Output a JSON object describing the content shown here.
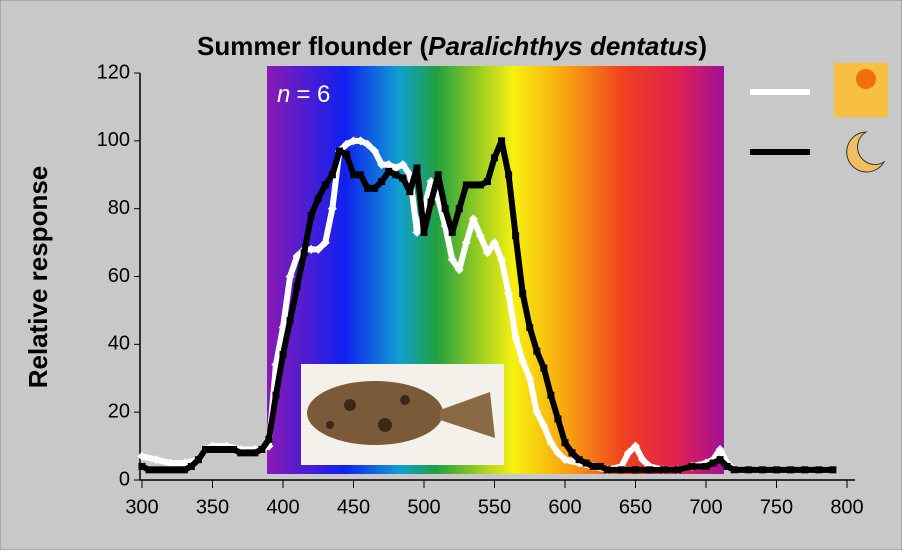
{
  "chart_data": {
    "type": "line",
    "title": [
      "Summer flounder (",
      "Paralichthys dentatus",
      ")"
    ],
    "ylabel": "Relative response",
    "annotation": [
      "n",
      "= 6"
    ],
    "xlim": [
      300,
      800
    ],
    "xticks": [
      300,
      350,
      400,
      450,
      500,
      550,
      600,
      650,
      700,
      750,
      800
    ],
    "ylim": [
      0,
      120
    ],
    "yticks": [
      0,
      20,
      40,
      60,
      80,
      100,
      120
    ],
    "series": [
      {
        "color": "#ffffff",
        "marker": "diamond",
        "x": [
          300,
          310,
          320,
          330,
          340,
          345,
          350,
          360,
          370,
          380,
          385,
          390,
          395,
          400,
          405,
          410,
          415,
          420,
          425,
          430,
          435,
          440,
          445,
          450,
          455,
          460,
          465,
          470,
          475,
          480,
          485,
          490,
          495,
          500,
          505,
          510,
          515,
          520,
          525,
          530,
          535,
          540,
          545,
          550,
          555,
          560,
          565,
          570,
          575,
          580,
          585,
          590,
          595,
          600,
          610,
          620,
          630,
          640,
          645,
          650,
          655,
          660,
          670,
          680,
          690,
          700,
          705,
          710,
          715,
          720
        ],
        "values": [
          7,
          6,
          5,
          5,
          6,
          9,
          10,
          10,
          9,
          9,
          9,
          10,
          34,
          45,
          60,
          66,
          68,
          68,
          68,
          70,
          80,
          97,
          99,
          100,
          100,
          99,
          97,
          93,
          93,
          92,
          93,
          90,
          73,
          80,
          88,
          83,
          75,
          65,
          62,
          70,
          77,
          72,
          67,
          70,
          65,
          55,
          42,
          35,
          30,
          20,
          16,
          11,
          8,
          6,
          5,
          4,
          3,
          4,
          8,
          10,
          6,
          4,
          3,
          3,
          4,
          5,
          6,
          9,
          5,
          3
        ]
      },
      {
        "color": "#000000",
        "marker": "square",
        "x": [
          300,
          305,
          310,
          315,
          320,
          325,
          330,
          335,
          340,
          345,
          350,
          355,
          360,
          365,
          370,
          375,
          380,
          385,
          390,
          395,
          400,
          405,
          410,
          415,
          420,
          425,
          430,
          435,
          440,
          445,
          450,
          455,
          460,
          465,
          470,
          475,
          480,
          485,
          490,
          495,
          500,
          505,
          510,
          515,
          520,
          525,
          530,
          535,
          540,
          545,
          550,
          555,
          560,
          565,
          570,
          575,
          580,
          585,
          590,
          595,
          600,
          605,
          610,
          615,
          620,
          625,
          630,
          640,
          650,
          660,
          670,
          680,
          690,
          700,
          705,
          710,
          715,
          720,
          730,
          740,
          750,
          760,
          770,
          780,
          790
        ],
        "values": [
          4,
          3,
          3,
          3,
          3,
          3,
          3,
          4,
          6,
          9,
          9,
          9,
          9,
          9,
          8,
          8,
          8,
          9,
          12,
          25,
          37,
          47,
          57,
          67,
          78,
          83,
          87,
          90,
          97,
          96,
          90,
          90,
          86,
          86,
          88,
          91,
          90,
          89,
          85,
          92,
          73,
          82,
          90,
          80,
          73,
          80,
          87,
          87,
          87,
          88,
          95,
          100,
          90,
          72,
          55,
          45,
          38,
          33,
          25,
          18,
          11,
          8,
          6,
          5,
          4,
          4,
          3,
          3,
          3,
          3,
          3,
          3,
          4,
          4,
          5,
          6,
          4,
          3,
          3,
          3,
          3,
          3,
          3,
          3,
          3
        ]
      }
    ]
  }
}
